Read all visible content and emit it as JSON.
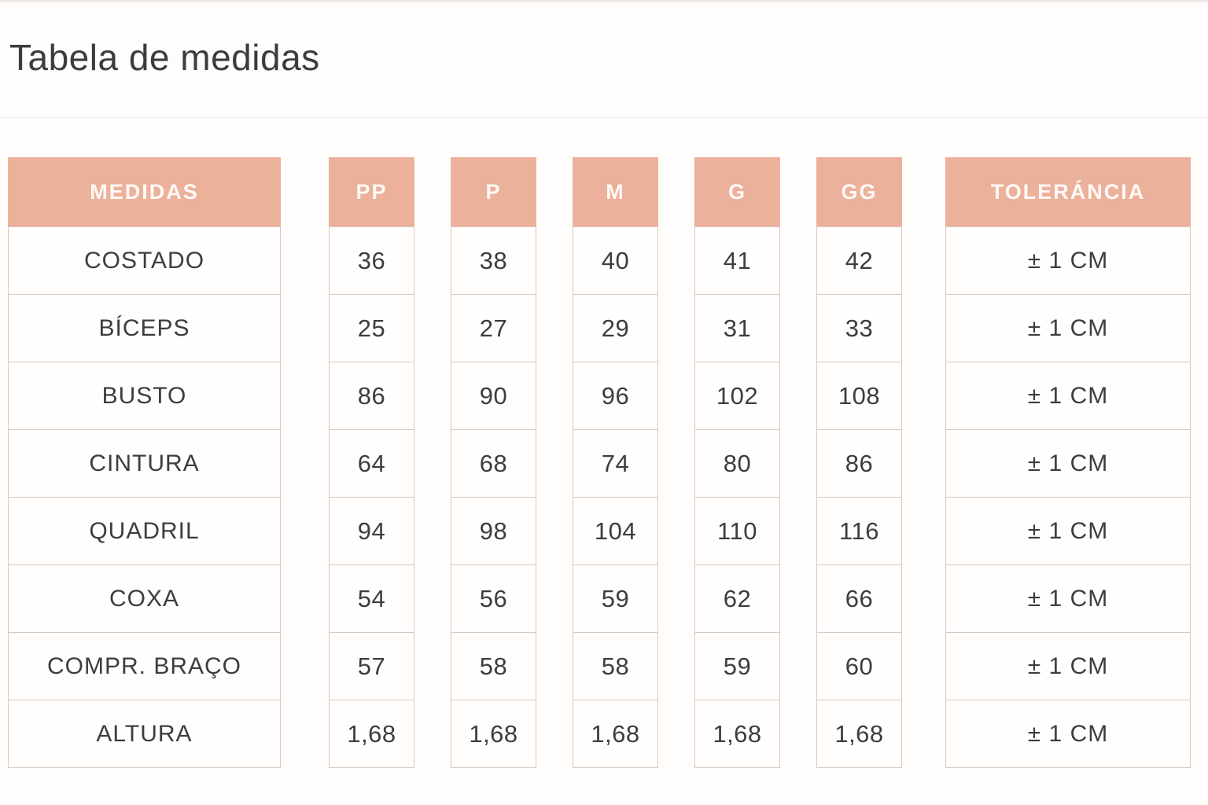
{
  "title": "Tabela de medidas",
  "table": {
    "measure_header": "MEDIDAS",
    "size_headers": [
      "PP",
      "P",
      "M",
      "G",
      "GG"
    ],
    "tolerance_header": "TOLERÁNCIA",
    "rows": [
      {
        "label": "COSTADO",
        "values": [
          "36",
          "38",
          "40",
          "41",
          "42"
        ],
        "tolerance": "± 1 CM"
      },
      {
        "label": "BÍCEPS",
        "values": [
          "25",
          "27",
          "29",
          "31",
          "33"
        ],
        "tolerance": "± 1 CM"
      },
      {
        "label": "BUSTO",
        "values": [
          "86",
          "90",
          "96",
          "102",
          "108"
        ],
        "tolerance": "± 1 CM"
      },
      {
        "label": "CINTURA",
        "values": [
          "64",
          "68",
          "74",
          "80",
          "86"
        ],
        "tolerance": "± 1 CM"
      },
      {
        "label": "QUADRIL",
        "values": [
          "94",
          "98",
          "104",
          "110",
          "116"
        ],
        "tolerance": "± 1 CM"
      },
      {
        "label": "COXA",
        "values": [
          "54",
          "56",
          "59",
          "62",
          "66"
        ],
        "tolerance": "± 1 CM"
      },
      {
        "label": "COMPR. BRAÇO",
        "values": [
          "57",
          "58",
          "58",
          "59",
          "60"
        ],
        "tolerance": "± 1 CM"
      },
      {
        "label": "ALTURA",
        "values": [
          "1,68",
          "1,68",
          "1,68",
          "1,68",
          "1,68"
        ],
        "tolerance": "± 1 CM"
      }
    ]
  },
  "colors": {
    "header_bg": "#ECB19B",
    "header_text": "#FFF9F6",
    "cell_text": "#3D3D3D",
    "border": "#D9C8C1"
  }
}
